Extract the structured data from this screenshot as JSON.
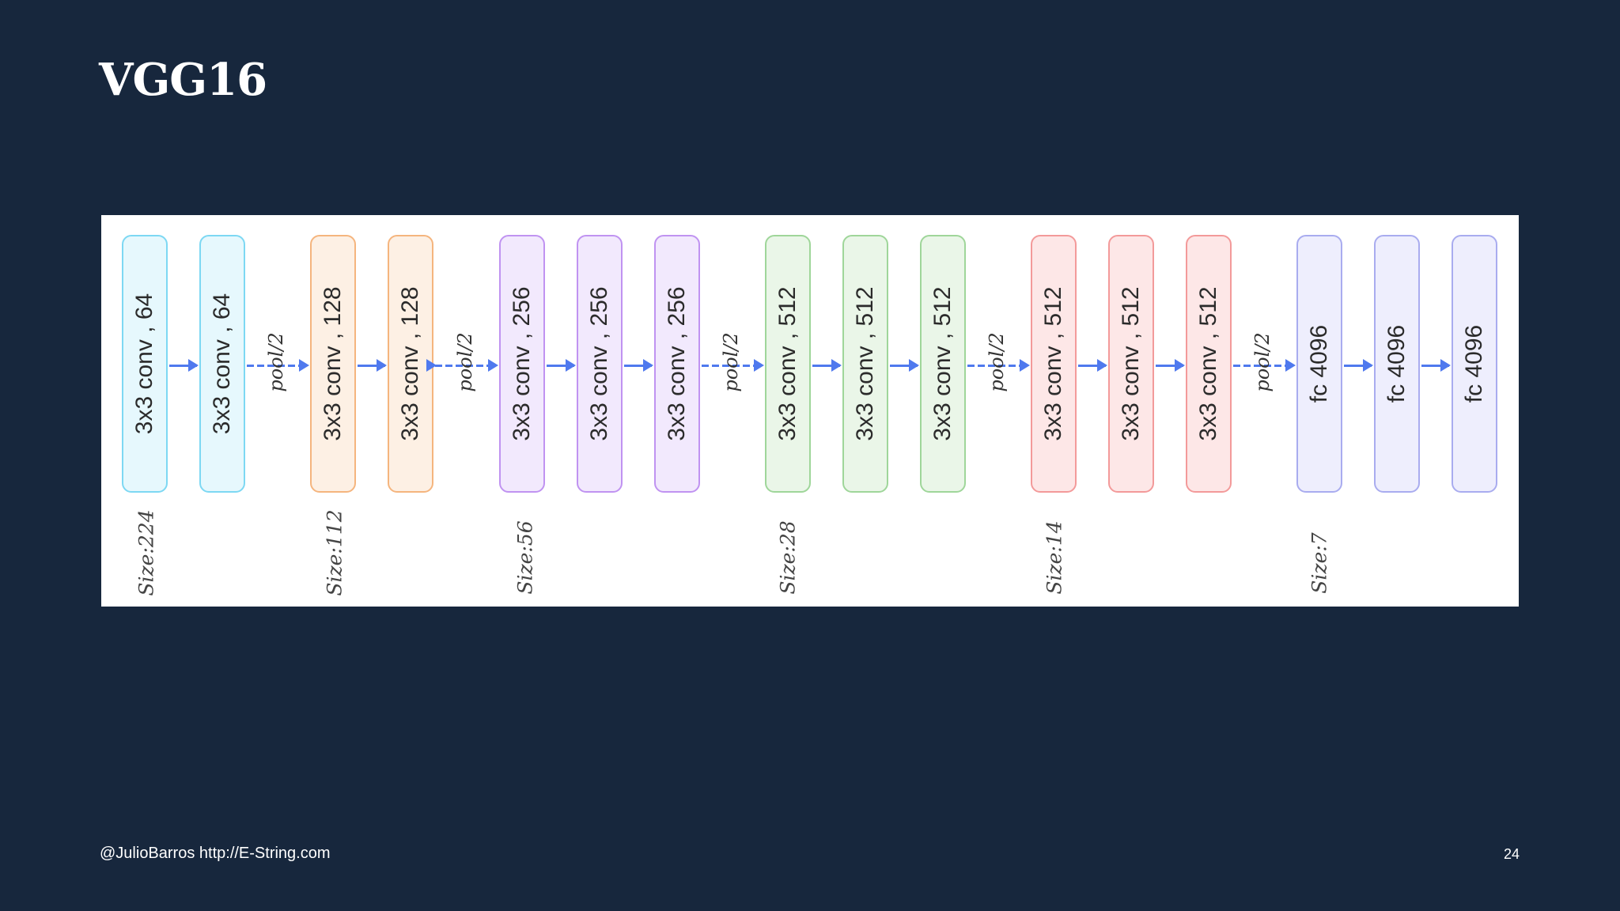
{
  "slide": {
    "title": "VGG16",
    "footer": "@JulioBarros http://E-String.com",
    "page_number": "24"
  },
  "diagram": {
    "layers": [
      {
        "label": "3x3 conv , 64",
        "fill": "#e6f8fd",
        "border": "#7dd8f3"
      },
      {
        "label": "3x3 conv , 64",
        "fill": "#e6f8fd",
        "border": "#7dd8f3"
      },
      {
        "label": "3x3 conv , 128",
        "fill": "#fdf0e4",
        "border": "#f5b57e"
      },
      {
        "label": "3x3 conv , 128",
        "fill": "#fdf0e4",
        "border": "#f5b57e"
      },
      {
        "label": "3x3 conv , 256",
        "fill": "#f2e9fd",
        "border": "#c093f1"
      },
      {
        "label": "3x3 conv , 256",
        "fill": "#f2e9fd",
        "border": "#c093f1"
      },
      {
        "label": "3x3 conv , 256",
        "fill": "#f2e9fd",
        "border": "#c093f1"
      },
      {
        "label": "3x3 conv , 512",
        "fill": "#eaf6e8",
        "border": "#9fd69a"
      },
      {
        "label": "3x3 conv , 512",
        "fill": "#eaf6e8",
        "border": "#9fd69a"
      },
      {
        "label": "3x3 conv , 512",
        "fill": "#eaf6e8",
        "border": "#9fd69a"
      },
      {
        "label": "3x3 conv , 512",
        "fill": "#fde7e7",
        "border": "#f39a9a"
      },
      {
        "label": "3x3 conv , 512",
        "fill": "#fde7e7",
        "border": "#f39a9a"
      },
      {
        "label": "3x3 conv , 512",
        "fill": "#fde7e7",
        "border": "#f39a9a"
      },
      {
        "label": "fc 4096",
        "fill": "#eeeefd",
        "border": "#a9acef"
      },
      {
        "label": "fc 4096",
        "fill": "#eeeefd",
        "border": "#a9acef"
      },
      {
        "label": "fc 4096",
        "fill": "#eeeefd",
        "border": "#a9acef"
      }
    ],
    "pool_label": "pool/2",
    "sizes": [
      "Size:224",
      "Size:112",
      "Size:56",
      "Size:28",
      "Size:14",
      "Size:7"
    ],
    "arrow_color": "#4f79ee"
  }
}
